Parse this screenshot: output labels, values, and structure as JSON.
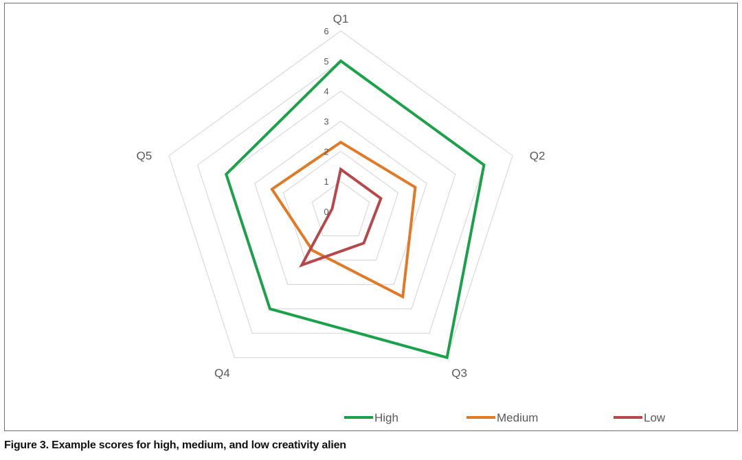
{
  "caption": "Figure 3. Example scores for high, medium, and low creativity alien",
  "chart_data": {
    "type": "radar",
    "categories": [
      "Q1",
      "Q2",
      "Q3",
      "Q4",
      "Q5"
    ],
    "ticks": [
      "0",
      "1",
      "2",
      "3",
      "4",
      "5",
      "6"
    ],
    "range": [
      0,
      6
    ],
    "grid": true,
    "legend_position": "bottom",
    "series": [
      {
        "name": "High",
        "color": "#1aa14a",
        "values": [
          5,
          5,
          6,
          4,
          4
        ]
      },
      {
        "name": "Medium",
        "color": "#e07a26",
        "values": [
          2.3,
          2.6,
          3.5,
          1.6,
          2.4
        ]
      },
      {
        "name": "Low",
        "color": "#b5484a",
        "values": [
          1.4,
          1.4,
          1.3,
          2.2,
          0.3
        ]
      }
    ]
  }
}
